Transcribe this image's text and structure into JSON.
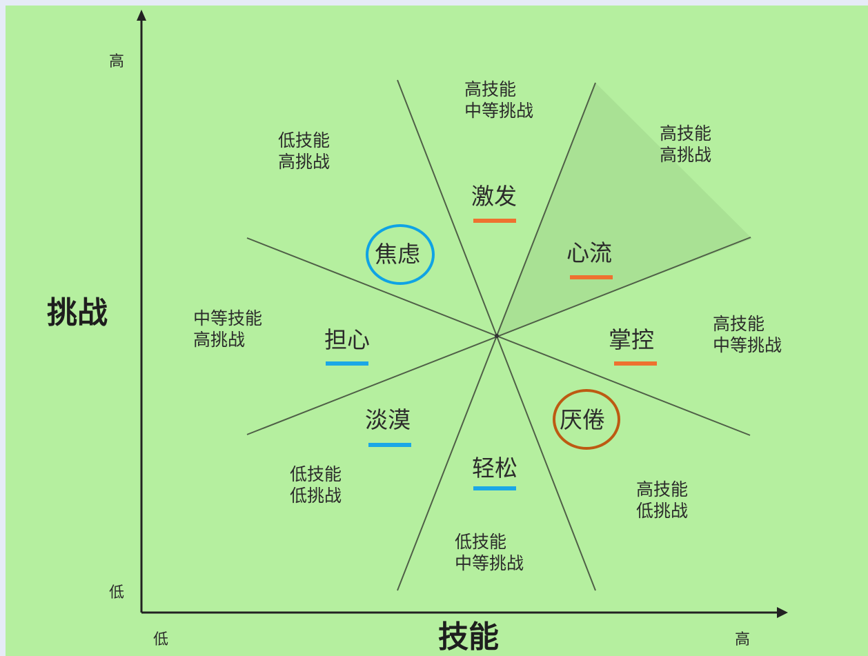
{
  "axes": {
    "y_label": "挑战",
    "x_label": "技能",
    "y_high": "高",
    "y_low": "低",
    "x_low": "低",
    "x_high": "高"
  },
  "regions": {
    "r1": {
      "l1": "高技能",
      "l2": "中等挑战"
    },
    "r2": {
      "l1": "低技能",
      "l2": "高挑战"
    },
    "r3": {
      "l1": "高技能",
      "l2": "高挑战"
    },
    "r4": {
      "l1": "中等技能",
      "l2": "高挑战"
    },
    "r5": {
      "l1": "高技能",
      "l2": "中等挑战"
    },
    "r6": {
      "l1": "低技能",
      "l2": "低挑战"
    },
    "r7": {
      "l1": "高技能",
      "l2": "低挑战"
    },
    "r8": {
      "l1": "低技能",
      "l2": "中等挑战"
    }
  },
  "states": {
    "arousal": "激发",
    "anxiety": "焦虑",
    "flow": "心流",
    "worry": "担心",
    "control": "掌控",
    "apathy": "淡漠",
    "boredom": "厌倦",
    "relaxation": "轻松"
  },
  "colors": {
    "background": "#b5ef9f",
    "lines": "#4f5f47",
    "orange_underline": "#ee7130",
    "blue_underline": "#1ba7e6",
    "blue_circle": "#0fa3e4",
    "brown_circle": "#bd5a12"
  }
}
